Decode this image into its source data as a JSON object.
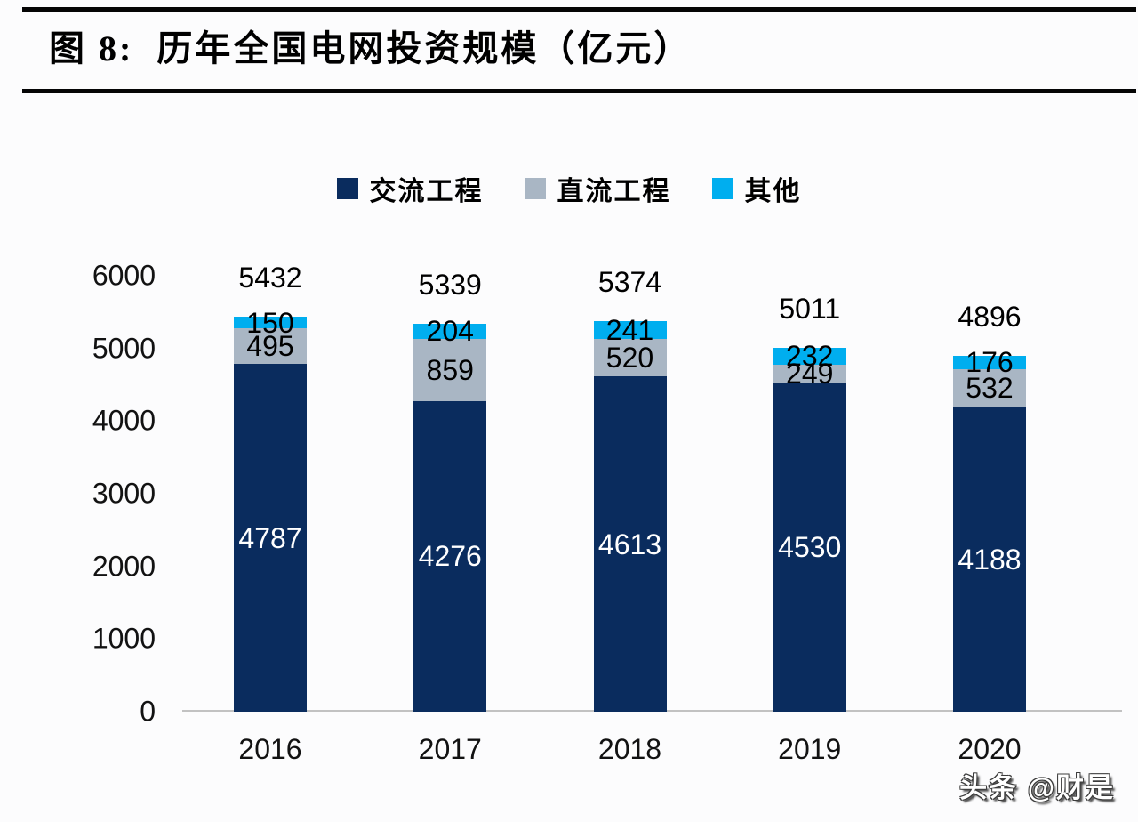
{
  "header": {
    "title": "图 8:  历年全国电网投资规模（亿元）"
  },
  "watermark": "头条 @财是",
  "colors": {
    "ac_navy": "#0A2C5E",
    "dc_gray": "#A9B6C4",
    "other_cyan": "#00AEEF",
    "axis_line": "#C2C2C2",
    "rule_black": "#050505"
  },
  "chart_data": {
    "type": "bar",
    "stacked": true,
    "title": "历年全国电网投资规模（亿元）",
    "xlabel": "",
    "ylabel": "",
    "categories": [
      "2016",
      "2017",
      "2018",
      "2019",
      "2020"
    ],
    "series": [
      {
        "name": "交流工程",
        "color": "#0A2C5E",
        "label_color": "#FFFFFF",
        "values": [
          4787,
          4276,
          4613,
          4530,
          4188
        ]
      },
      {
        "name": "直流工程",
        "color": "#A9B6C4",
        "label_color": "#000000",
        "values": [
          495,
          859,
          520,
          249,
          532
        ]
      },
      {
        "name": "其他",
        "color": "#00AEEF",
        "label_color": "#000000",
        "values": [
          150,
          204,
          241,
          232,
          176
        ]
      }
    ],
    "totals": [
      5432,
      5339,
      5374,
      5011,
      4896
    ],
    "y_ticks": [
      0,
      1000,
      2000,
      3000,
      4000,
      5000,
      6000
    ],
    "ylim": [
      0,
      6000
    ],
    "legend_position": "top",
    "grid": false
  }
}
